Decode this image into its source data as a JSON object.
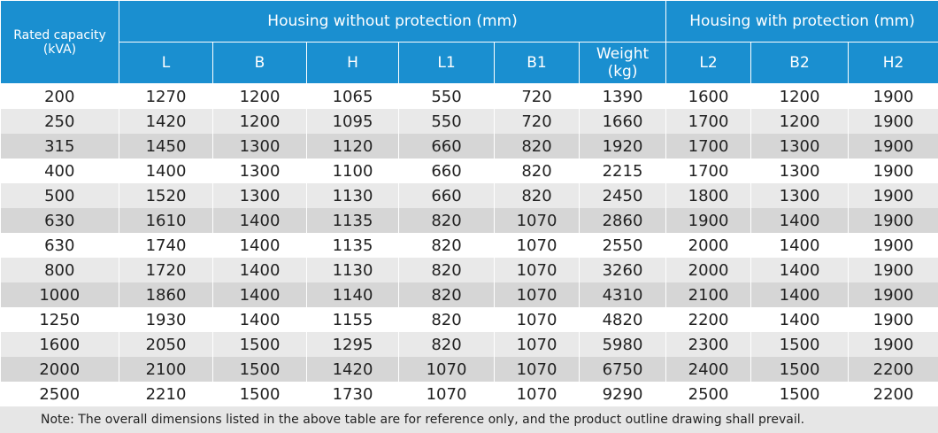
{
  "header": {
    "rated_capacity": "Rated capacity (kVA)",
    "group_without": "Housing without protection (mm)",
    "group_with": "Housing with protection (mm)",
    "columns": [
      "L",
      "B",
      "H",
      "L1",
      "B1",
      "Weight (kg)",
      "L2",
      "B2",
      "H2"
    ]
  },
  "rows": [
    [
      "200",
      "1270",
      "1200",
      "1065",
      "550",
      "720",
      "1390",
      "1600",
      "1200",
      "1900"
    ],
    [
      "250",
      "1420",
      "1200",
      "1095",
      "550",
      "720",
      "1660",
      "1700",
      "1200",
      "1900"
    ],
    [
      "315",
      "1450",
      "1300",
      "1120",
      "660",
      "820",
      "1920",
      "1700",
      "1300",
      "1900"
    ],
    [
      "400",
      "1400",
      "1300",
      "1100",
      "660",
      "820",
      "2215",
      "1700",
      "1300",
      "1900"
    ],
    [
      "500",
      "1520",
      "1300",
      "1130",
      "660",
      "820",
      "2450",
      "1800",
      "1300",
      "1900"
    ],
    [
      "630",
      "1610",
      "1400",
      "1135",
      "820",
      "1070",
      "2860",
      "1900",
      "1400",
      "1900"
    ],
    [
      "630",
      "1740",
      "1400",
      "1135",
      "820",
      "1070",
      "2550",
      "2000",
      "1400",
      "1900"
    ],
    [
      "800",
      "1720",
      "1400",
      "1130",
      "820",
      "1070",
      "3260",
      "2000",
      "1400",
      "1900"
    ],
    [
      "1000",
      "1860",
      "1400",
      "1140",
      "820",
      "1070",
      "4310",
      "2100",
      "1400",
      "1900"
    ],
    [
      "1250",
      "1930",
      "1400",
      "1155",
      "820",
      "1070",
      "4820",
      "2200",
      "1400",
      "1900"
    ],
    [
      "1600",
      "2050",
      "1500",
      "1295",
      "820",
      "1070",
      "5980",
      "2300",
      "1500",
      "1900"
    ],
    [
      "2000",
      "2100",
      "1500",
      "1420",
      "1070",
      "1070",
      "6750",
      "2400",
      "1500",
      "2200"
    ],
    [
      "2500",
      "2210",
      "1500",
      "1730",
      "1070",
      "1070",
      "9290",
      "2500",
      "1500",
      "2200"
    ]
  ],
  "note": "Note: The overall dimensions listed in the above table are for reference only, and the product outline drawing shall prevail.",
  "colors": {
    "header": "#1a8fd0",
    "row_light": "#e9e9e9",
    "row_mid": "#d6d6d6"
  }
}
